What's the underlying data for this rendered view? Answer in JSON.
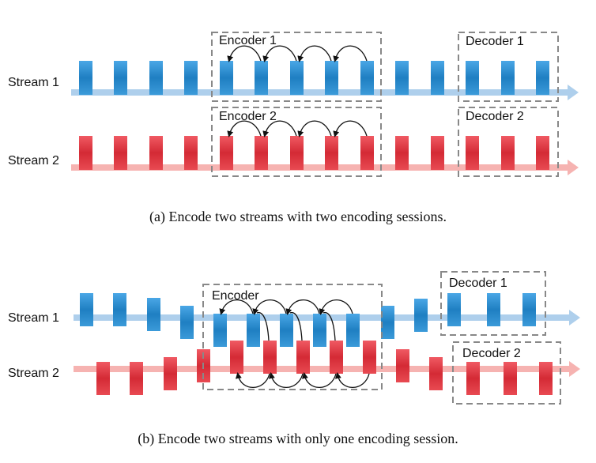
{
  "colors": {
    "blue": "#2b8fd4",
    "blue_dark": "#1d6fad",
    "red": "#e63c46",
    "red_dark": "#b8242e",
    "blue_arrow": "#aecfec",
    "red_arrow": "#f6b3b1",
    "box_dash": "#888888"
  },
  "panel_a": {
    "stream1_label": "Stream 1",
    "stream2_label": "Stream 2",
    "encoder1_label": "Encoder 1",
    "encoder2_label": "Encoder 2",
    "decoder1_label": "Decoder 1",
    "decoder2_label": "Decoder 2",
    "caption": "(a)  Encode two streams with two encoding sessions."
  },
  "panel_b": {
    "stream1_label": "Stream 1",
    "stream2_label": "Stream 2",
    "encoder_label": "Encoder",
    "decoder1_label": "Decoder 1",
    "decoder2_label": "Decoder 2",
    "caption": "(b)  Encode two streams with only one encoding session."
  }
}
